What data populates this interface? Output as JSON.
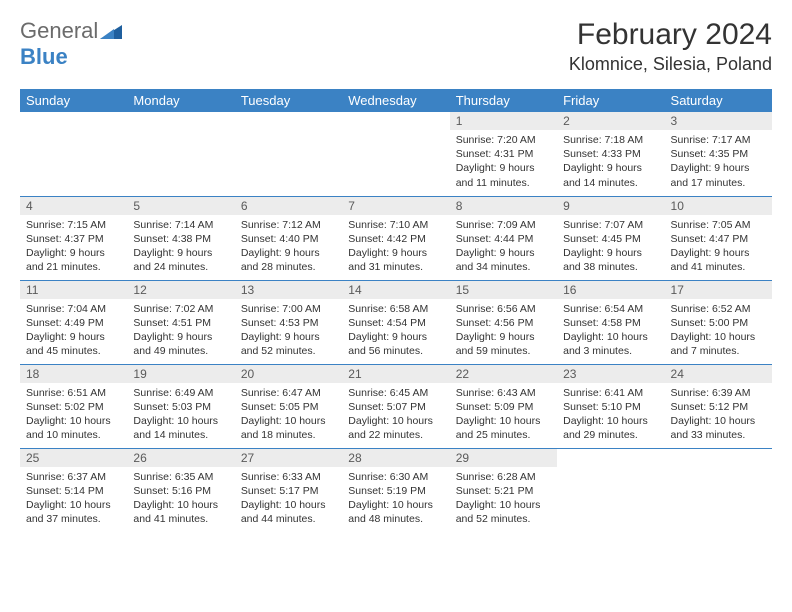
{
  "logo": {
    "gray": "General",
    "blue": "Blue"
  },
  "title": "February 2024",
  "location": "Klomnice, Silesia, Poland",
  "colors": {
    "header_bg": "#3b82c4",
    "daynum_bg": "#ececec",
    "border": "#3b82c4",
    "logo_gray": "#6b6b6b",
    "logo_blue": "#3b82c4"
  },
  "weekdays": [
    "Sunday",
    "Monday",
    "Tuesday",
    "Wednesday",
    "Thursday",
    "Friday",
    "Saturday"
  ],
  "weeks": [
    [
      null,
      null,
      null,
      null,
      {
        "n": "1",
        "sr": "Sunrise: 7:20 AM",
        "ss": "Sunset: 4:31 PM",
        "dl": "Daylight: 9 hours and 11 minutes."
      },
      {
        "n": "2",
        "sr": "Sunrise: 7:18 AM",
        "ss": "Sunset: 4:33 PM",
        "dl": "Daylight: 9 hours and 14 minutes."
      },
      {
        "n": "3",
        "sr": "Sunrise: 7:17 AM",
        "ss": "Sunset: 4:35 PM",
        "dl": "Daylight: 9 hours and 17 minutes."
      }
    ],
    [
      {
        "n": "4",
        "sr": "Sunrise: 7:15 AM",
        "ss": "Sunset: 4:37 PM",
        "dl": "Daylight: 9 hours and 21 minutes."
      },
      {
        "n": "5",
        "sr": "Sunrise: 7:14 AM",
        "ss": "Sunset: 4:38 PM",
        "dl": "Daylight: 9 hours and 24 minutes."
      },
      {
        "n": "6",
        "sr": "Sunrise: 7:12 AM",
        "ss": "Sunset: 4:40 PM",
        "dl": "Daylight: 9 hours and 28 minutes."
      },
      {
        "n": "7",
        "sr": "Sunrise: 7:10 AM",
        "ss": "Sunset: 4:42 PM",
        "dl": "Daylight: 9 hours and 31 minutes."
      },
      {
        "n": "8",
        "sr": "Sunrise: 7:09 AM",
        "ss": "Sunset: 4:44 PM",
        "dl": "Daylight: 9 hours and 34 minutes."
      },
      {
        "n": "9",
        "sr": "Sunrise: 7:07 AM",
        "ss": "Sunset: 4:45 PM",
        "dl": "Daylight: 9 hours and 38 minutes."
      },
      {
        "n": "10",
        "sr": "Sunrise: 7:05 AM",
        "ss": "Sunset: 4:47 PM",
        "dl": "Daylight: 9 hours and 41 minutes."
      }
    ],
    [
      {
        "n": "11",
        "sr": "Sunrise: 7:04 AM",
        "ss": "Sunset: 4:49 PM",
        "dl": "Daylight: 9 hours and 45 minutes."
      },
      {
        "n": "12",
        "sr": "Sunrise: 7:02 AM",
        "ss": "Sunset: 4:51 PM",
        "dl": "Daylight: 9 hours and 49 minutes."
      },
      {
        "n": "13",
        "sr": "Sunrise: 7:00 AM",
        "ss": "Sunset: 4:53 PM",
        "dl": "Daylight: 9 hours and 52 minutes."
      },
      {
        "n": "14",
        "sr": "Sunrise: 6:58 AM",
        "ss": "Sunset: 4:54 PM",
        "dl": "Daylight: 9 hours and 56 minutes."
      },
      {
        "n": "15",
        "sr": "Sunrise: 6:56 AM",
        "ss": "Sunset: 4:56 PM",
        "dl": "Daylight: 9 hours and 59 minutes."
      },
      {
        "n": "16",
        "sr": "Sunrise: 6:54 AM",
        "ss": "Sunset: 4:58 PM",
        "dl": "Daylight: 10 hours and 3 minutes."
      },
      {
        "n": "17",
        "sr": "Sunrise: 6:52 AM",
        "ss": "Sunset: 5:00 PM",
        "dl": "Daylight: 10 hours and 7 minutes."
      }
    ],
    [
      {
        "n": "18",
        "sr": "Sunrise: 6:51 AM",
        "ss": "Sunset: 5:02 PM",
        "dl": "Daylight: 10 hours and 10 minutes."
      },
      {
        "n": "19",
        "sr": "Sunrise: 6:49 AM",
        "ss": "Sunset: 5:03 PM",
        "dl": "Daylight: 10 hours and 14 minutes."
      },
      {
        "n": "20",
        "sr": "Sunrise: 6:47 AM",
        "ss": "Sunset: 5:05 PM",
        "dl": "Daylight: 10 hours and 18 minutes."
      },
      {
        "n": "21",
        "sr": "Sunrise: 6:45 AM",
        "ss": "Sunset: 5:07 PM",
        "dl": "Daylight: 10 hours and 22 minutes."
      },
      {
        "n": "22",
        "sr": "Sunrise: 6:43 AM",
        "ss": "Sunset: 5:09 PM",
        "dl": "Daylight: 10 hours and 25 minutes."
      },
      {
        "n": "23",
        "sr": "Sunrise: 6:41 AM",
        "ss": "Sunset: 5:10 PM",
        "dl": "Daylight: 10 hours and 29 minutes."
      },
      {
        "n": "24",
        "sr": "Sunrise: 6:39 AM",
        "ss": "Sunset: 5:12 PM",
        "dl": "Daylight: 10 hours and 33 minutes."
      }
    ],
    [
      {
        "n": "25",
        "sr": "Sunrise: 6:37 AM",
        "ss": "Sunset: 5:14 PM",
        "dl": "Daylight: 10 hours and 37 minutes."
      },
      {
        "n": "26",
        "sr": "Sunrise: 6:35 AM",
        "ss": "Sunset: 5:16 PM",
        "dl": "Daylight: 10 hours and 41 minutes."
      },
      {
        "n": "27",
        "sr": "Sunrise: 6:33 AM",
        "ss": "Sunset: 5:17 PM",
        "dl": "Daylight: 10 hours and 44 minutes."
      },
      {
        "n": "28",
        "sr": "Sunrise: 6:30 AM",
        "ss": "Sunset: 5:19 PM",
        "dl": "Daylight: 10 hours and 48 minutes."
      },
      {
        "n": "29",
        "sr": "Sunrise: 6:28 AM",
        "ss": "Sunset: 5:21 PM",
        "dl": "Daylight: 10 hours and 52 minutes."
      },
      null,
      null
    ]
  ]
}
